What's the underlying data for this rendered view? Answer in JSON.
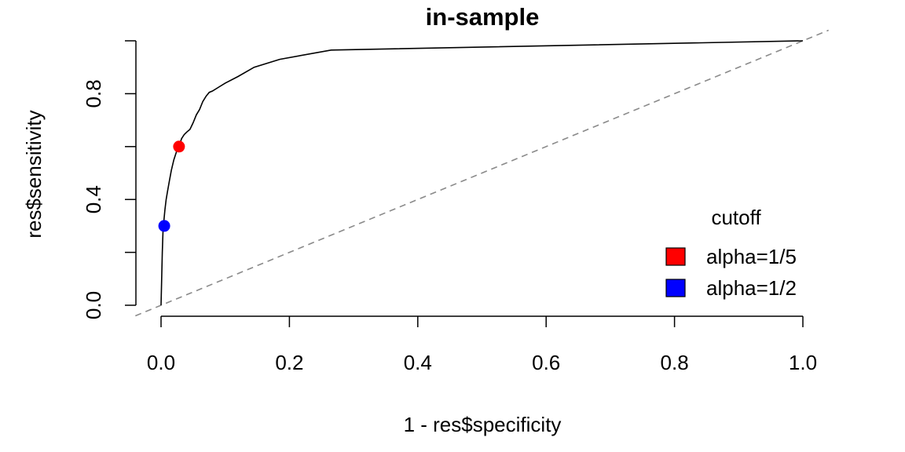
{
  "chart_data": {
    "type": "line",
    "title": "in-sample",
    "xlabel": "1 - res$specificity",
    "ylabel": "res$sensitivity",
    "xlim": [
      0,
      1
    ],
    "ylim": [
      0,
      1
    ],
    "x_ticks": [
      0.0,
      0.2,
      0.4,
      0.6,
      0.8,
      1.0
    ],
    "x_tick_labels": [
      "0.0",
      "0.2",
      "0.4",
      "0.6",
      "0.8",
      "1.0"
    ],
    "y_ticks": [
      0.0,
      0.2,
      0.4,
      0.6,
      0.8,
      1.0
    ],
    "y_tick_labels": [
      "0.0",
      "",
      "0.4",
      "",
      "0.8",
      ""
    ],
    "grid": false,
    "series": [
      {
        "x": [
          0.0,
          0.001,
          0.002,
          0.003,
          0.004,
          0.006,
          0.008,
          0.01,
          0.013,
          0.016,
          0.02,
          0.024,
          0.028,
          0.032,
          0.036,
          0.04,
          0.045,
          0.05,
          0.055,
          0.06,
          0.065,
          0.07,
          0.075,
          0.08,
          0.09,
          0.1,
          0.12,
          0.145,
          0.185,
          0.265,
          1.0
        ],
        "y": [
          0.0,
          0.1,
          0.2,
          0.28,
          0.31,
          0.36,
          0.4,
          0.43,
          0.47,
          0.51,
          0.55,
          0.58,
          0.6,
          0.63,
          0.645,
          0.655,
          0.665,
          0.69,
          0.72,
          0.74,
          0.77,
          0.79,
          0.805,
          0.81,
          0.825,
          0.84,
          0.865,
          0.9,
          0.93,
          0.965,
          1.0
        ]
      }
    ],
    "reference_line": {
      "x": [
        -0.04,
        1.04
      ],
      "y": [
        -0.04,
        1.04
      ],
      "style": "dashed",
      "color": "#8a8a8a"
    },
    "points": [
      {
        "x": 0.028,
        "y": 0.6,
        "color": "#ff0000"
      },
      {
        "x": 0.005,
        "y": 0.3,
        "color": "#0000ff"
      }
    ],
    "legend": {
      "title": "cutoff",
      "position": "bottom-right",
      "entries": [
        {
          "label": "alpha=1/5",
          "color": "#ff0000"
        },
        {
          "label": "alpha=1/2",
          "color": "#0000ff"
        }
      ]
    }
  }
}
